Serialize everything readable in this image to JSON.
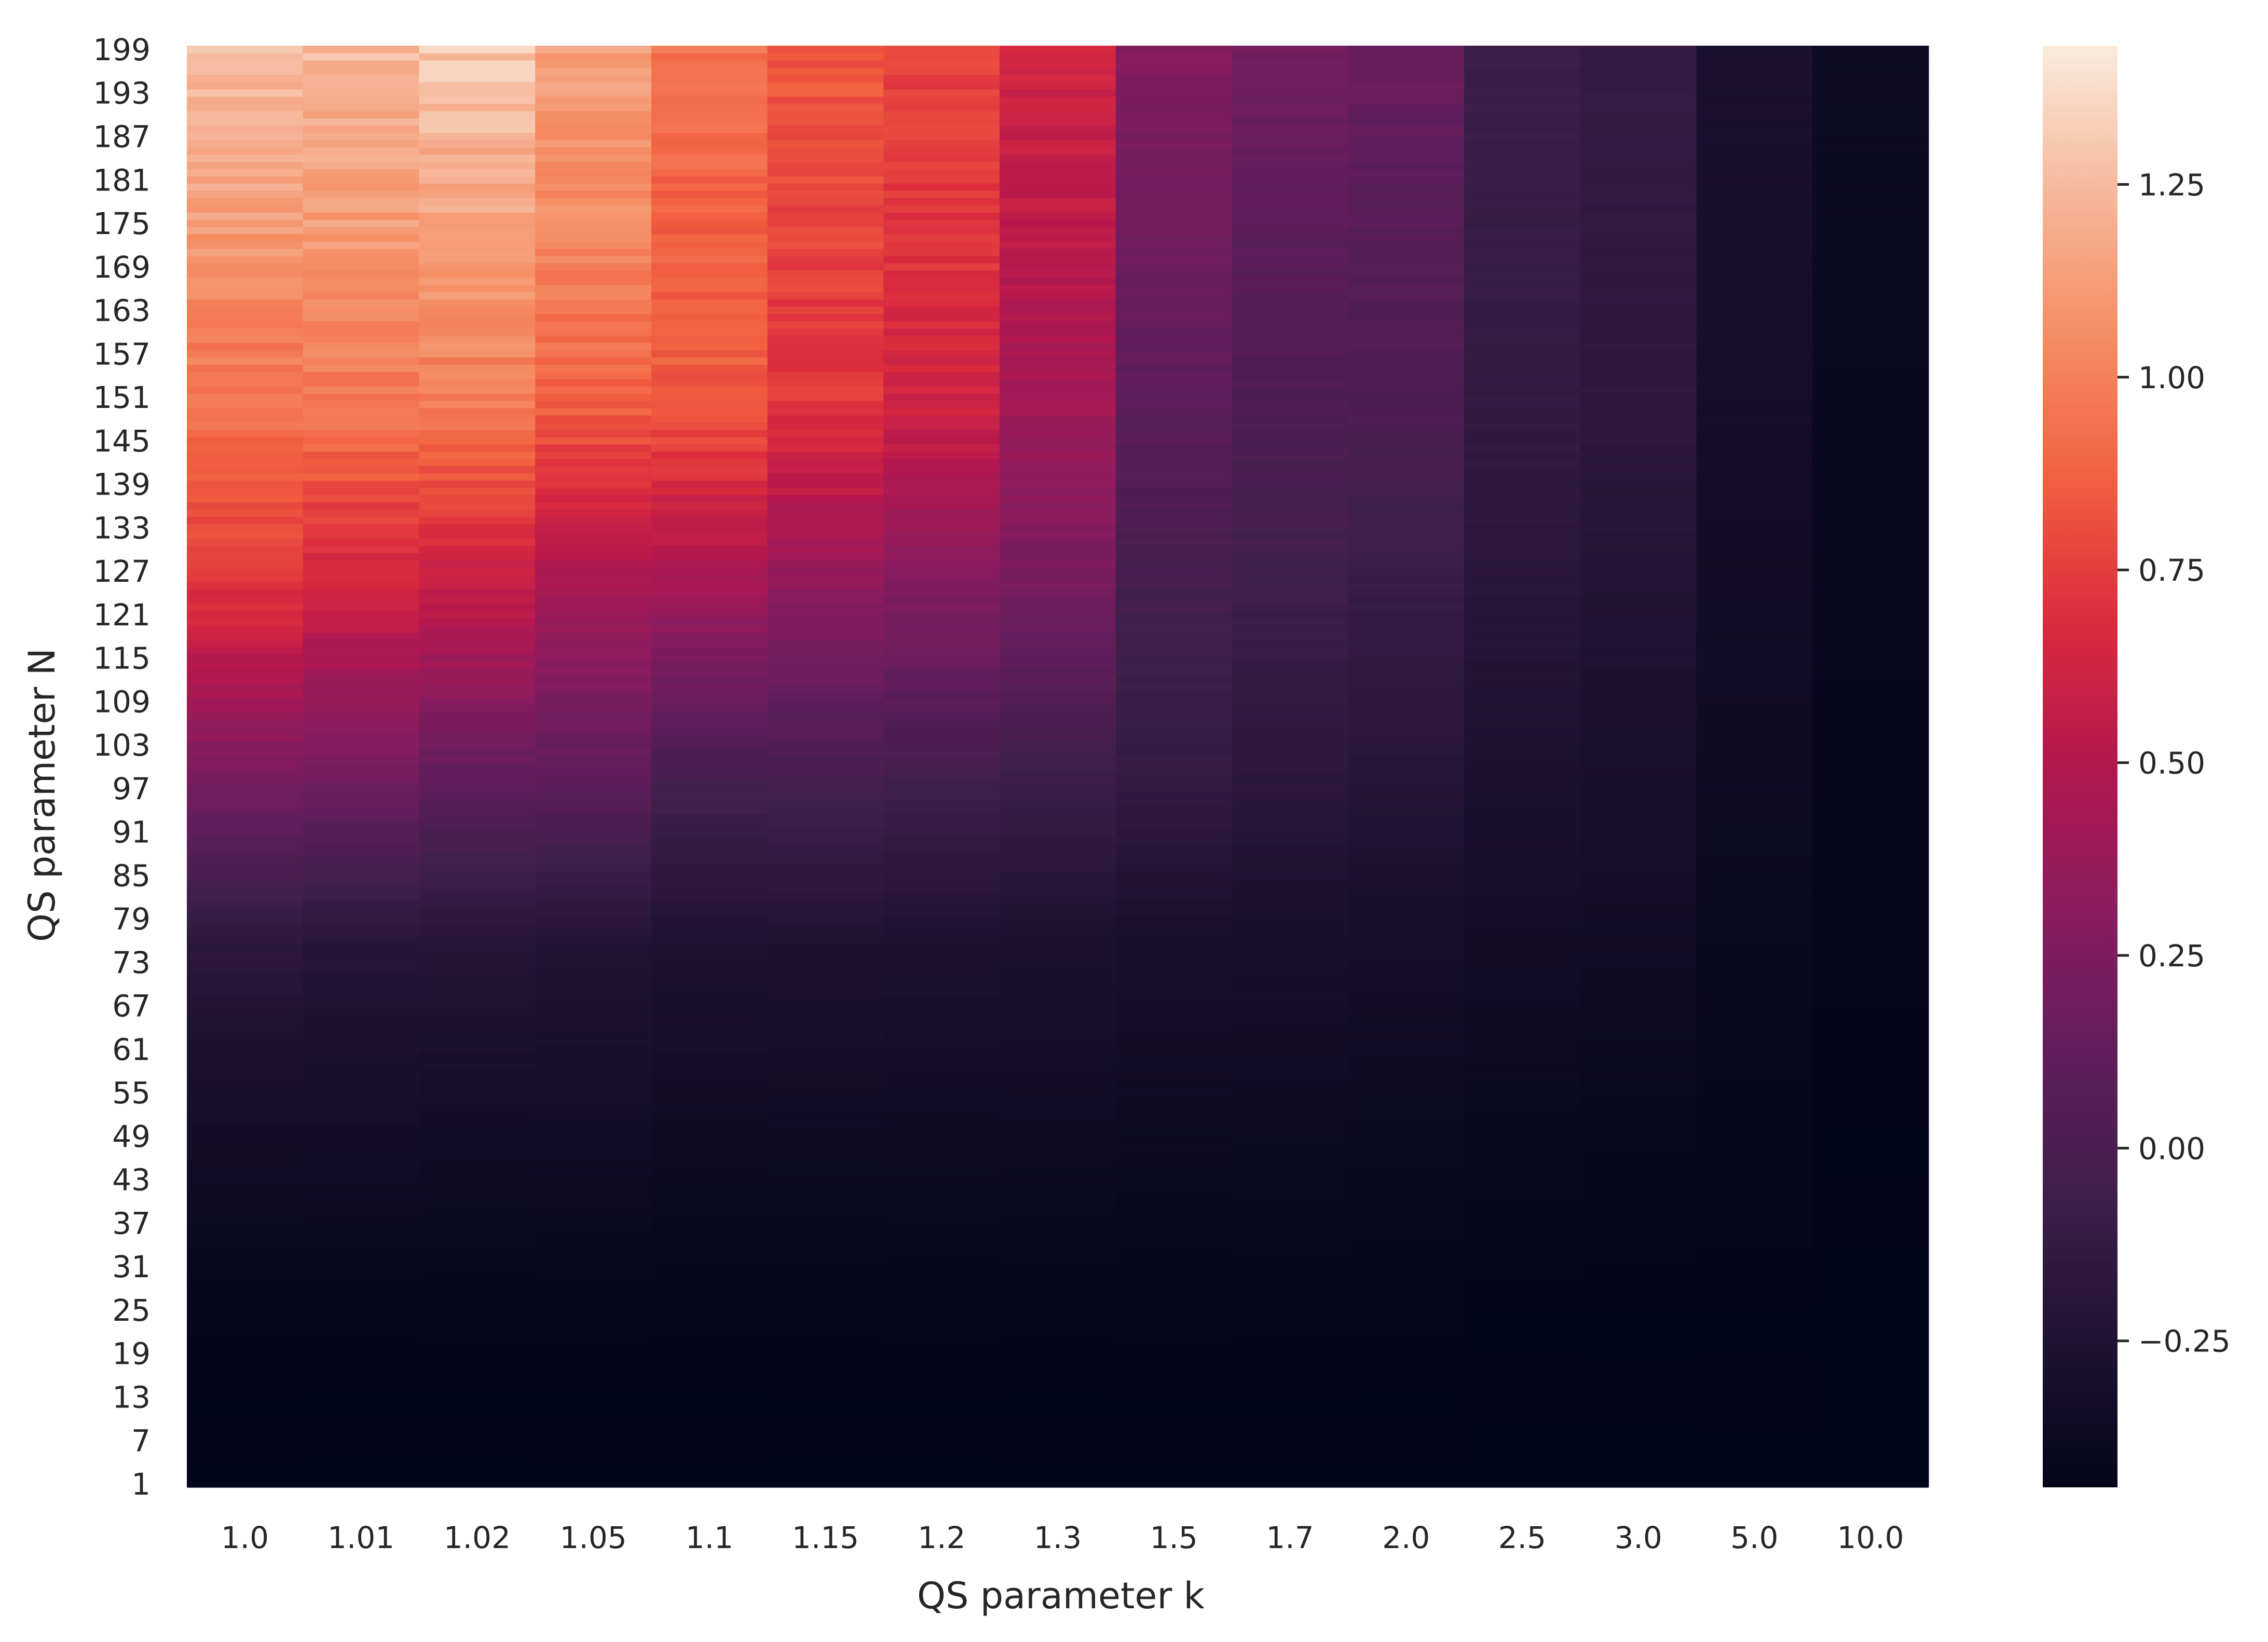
{
  "chart_data": {
    "type": "heatmap",
    "title": "",
    "xlabel": "QS parameter k",
    "ylabel": "QS parameter N",
    "x_categories": [
      "1.0",
      "1.01",
      "1.02",
      "1.05",
      "1.1",
      "1.15",
      "1.2",
      "1.3",
      "1.5",
      "1.7",
      "2.0",
      "2.5",
      "3.0",
      "5.0",
      "10.0"
    ],
    "y_range": [
      1,
      199
    ],
    "y_step": 1,
    "y_tick_labels": [
      "1",
      "7",
      "13",
      "19",
      "25",
      "31",
      "37",
      "43",
      "49",
      "55",
      "61",
      "67",
      "73",
      "79",
      "85",
      "91",
      "97",
      "103",
      "109",
      "115",
      "121",
      "127",
      "133",
      "139",
      "145",
      "151",
      "157",
      "163",
      "169",
      "175",
      "181",
      "187",
      "193",
      "199"
    ],
    "value_range": [
      -0.44,
      1.43
    ],
    "colormap": "rocket",
    "colorbar_ticks": [
      -0.25,
      0.0,
      0.25,
      0.5,
      0.75,
      1.0,
      1.25
    ],
    "colorbar_tick_labels": [
      "−0.25",
      "0.00",
      "0.25",
      "0.50",
      "0.75",
      "1.00",
      "1.25"
    ],
    "column_values_at_N": {
      "N": [
        1,
        25,
        50,
        75,
        100,
        125,
        150,
        175,
        199
      ],
      "1.0": [
        -0.44,
        -0.42,
        -0.33,
        -0.18,
        0.25,
        0.72,
        0.95,
        1.12,
        1.28
      ],
      "1.01": [
        -0.44,
        -0.42,
        -0.33,
        -0.21,
        0.22,
        0.62,
        0.97,
        1.13,
        1.25
      ],
      "1.02": [
        -0.44,
        -0.42,
        -0.34,
        -0.22,
        0.15,
        0.58,
        0.98,
        1.15,
        1.3
      ],
      "1.05": [
        -0.44,
        -0.42,
        -0.34,
        -0.24,
        0.12,
        0.45,
        0.88,
        1.05,
        1.15
      ],
      "1.1": [
        -0.44,
        -0.42,
        -0.36,
        -0.26,
        -0.01,
        0.42,
        0.85,
        0.88,
        0.95
      ],
      "1.15": [
        -0.44,
        -0.42,
        -0.36,
        -0.26,
        0.0,
        0.33,
        0.72,
        0.78,
        0.85
      ],
      "1.2": [
        -0.44,
        -0.42,
        -0.36,
        -0.27,
        -0.03,
        0.28,
        0.62,
        0.72,
        0.78
      ],
      "1.3": [
        -0.44,
        -0.42,
        -0.36,
        -0.28,
        -0.06,
        0.22,
        0.42,
        0.55,
        0.62
      ],
      "1.5": [
        -0.44,
        -0.42,
        -0.37,
        -0.3,
        -0.12,
        -0.03,
        0.1,
        0.2,
        0.28
      ],
      "1.7": [
        -0.44,
        -0.42,
        -0.37,
        -0.31,
        -0.17,
        -0.06,
        0.02,
        0.1,
        0.2
      ],
      "2.0": [
        -0.44,
        -0.42,
        -0.38,
        -0.32,
        -0.2,
        -0.1,
        0.02,
        0.08,
        0.16
      ],
      "2.5": [
        -0.44,
        -0.43,
        -0.39,
        -0.34,
        -0.27,
        -0.2,
        -0.13,
        -0.1,
        -0.08
      ],
      "3.0": [
        -0.44,
        -0.43,
        -0.4,
        -0.35,
        -0.29,
        -0.23,
        -0.17,
        -0.14,
        -0.12
      ],
      "5.0": [
        -0.44,
        -0.43,
        -0.41,
        -0.39,
        -0.36,
        -0.34,
        -0.32,
        -0.3,
        -0.28
      ],
      "10.0": [
        -0.44,
        -0.44,
        -0.43,
        -0.42,
        -0.41,
        -0.4,
        -0.39,
        -0.38,
        -0.37
      ]
    },
    "row_noise_amplitude": 0.08,
    "grid": false,
    "legend": "none",
    "colorbar_position": "right"
  }
}
